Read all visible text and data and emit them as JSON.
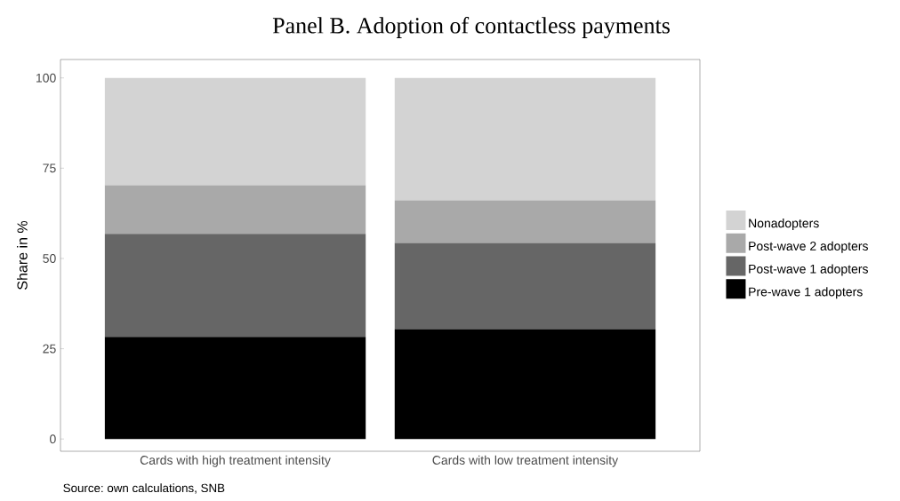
{
  "chart_data": {
    "type": "bar",
    "title": "Panel B. Adoption of contactless payments",
    "ylabel": "Share in %",
    "categories": [
      "Cards with high treatment intensity",
      "Cards with low treatment intensity"
    ],
    "series": [
      {
        "name": "Pre-wave 1 adopters",
        "color": "#000000",
        "values": [
          28.3,
          30.4
        ]
      },
      {
        "name": "Post-wave 1 adopters",
        "color": "#666666",
        "values": [
          28.5,
          23.9
        ]
      },
      {
        "name": "Post-wave 2 adopters",
        "color": "#a9a9a9",
        "values": [
          13.5,
          11.8
        ]
      },
      {
        "name": "Nonadopters",
        "color": "#d3d3d3",
        "values": [
          29.7,
          33.9
        ]
      }
    ],
    "stacked": true,
    "ylim": [
      -3.4,
      105.1
    ],
    "yticks": [
      0,
      25,
      50,
      75,
      100
    ],
    "grid": false,
    "legend": "right",
    "annotations": [
      "Source: own calculations, SNB"
    ]
  }
}
